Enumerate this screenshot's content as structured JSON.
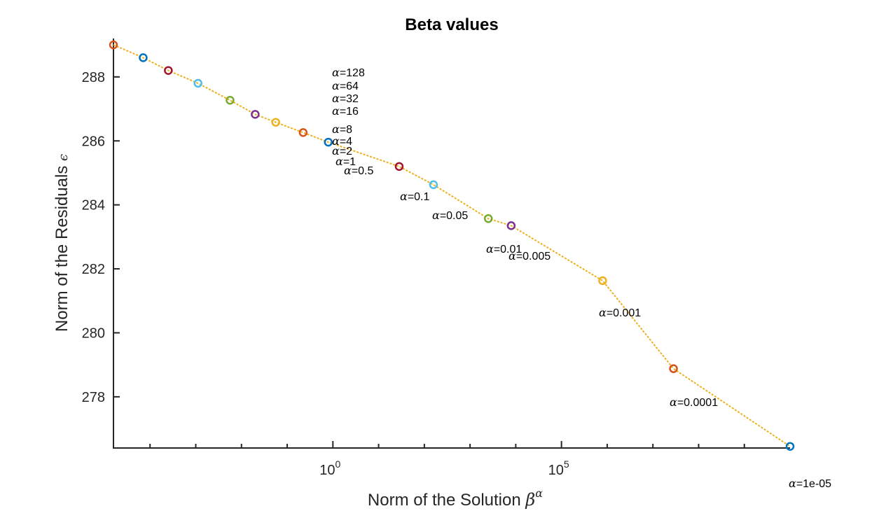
{
  "chart_data": {
    "type": "line",
    "title": "Beta values",
    "xlabel": "Norm of the Solution",
    "xlabel_symbol": "β",
    "xlabel_superscript": "α",
    "ylabel": "Norm of the Residuals",
    "ylabel_symbol": "ϵ",
    "x_scale": "log",
    "xlim_log10": [
      -4.8,
      10
    ],
    "ylim": [
      276.4,
      289.2
    ],
    "x_ticks": [
      {
        "base": "10",
        "exp": "0",
        "log10": 0
      },
      {
        "base": "10",
        "exp": "5",
        "log10": 5
      }
    ],
    "x_minor_ticks_log10": [
      -4,
      -3,
      -2,
      -1,
      1,
      2,
      3,
      4,
      6,
      7,
      8,
      9
    ],
    "y_ticks": [
      278,
      280,
      282,
      284,
      286,
      288
    ],
    "y_tick_labels": [
      "278",
      "280",
      "282",
      "284",
      "286",
      "288"
    ],
    "grid": false,
    "line_color": "#EDB120",
    "series": [
      {
        "label": "α=128",
        "annotation_text": "=128",
        "log10x": -4.8,
        "y": 289.0,
        "color": "#D95319"
      },
      {
        "label": "α=64",
        "annotation_text": "=64",
        "log10x": -4.15,
        "y": 288.6,
        "color": "#0072BD"
      },
      {
        "label": "α=32",
        "annotation_text": "=32",
        "log10x": -3.6,
        "y": 288.2,
        "color": "#A2142F"
      },
      {
        "label": "α=16",
        "annotation_text": "=16",
        "log10x": -2.95,
        "y": 287.8,
        "color": "#4DBEEE"
      },
      {
        "label": "α=8",
        "annotation_text": "=8",
        "log10x": -2.25,
        "y": 287.27,
        "color": "#77AC30"
      },
      {
        "label": "α=4",
        "annotation_text": "=4",
        "log10x": -1.7,
        "y": 286.83,
        "color": "#7E2F8E"
      },
      {
        "label": "α=2",
        "annotation_text": "=2",
        "log10x": -1.25,
        "y": 286.58,
        "color": "#EDB120"
      },
      {
        "label": "α=1",
        "annotation_text": "=1",
        "log10x": -0.65,
        "y": 286.26,
        "color": "#D95319"
      },
      {
        "label": "α=0.5",
        "annotation_text": "=0.5",
        "log10x": -0.1,
        "y": 285.96,
        "color": "#0072BD"
      },
      {
        "label": "α=0.1",
        "annotation_text": "=0.1",
        "log10x": 1.45,
        "y": 285.2,
        "color": "#A2142F"
      },
      {
        "label": "α=0.05",
        "annotation_text": "=0.05",
        "log10x": 2.2,
        "y": 284.63,
        "color": "#4DBEEE"
      },
      {
        "label": "α=0.01",
        "annotation_text": "=0.01",
        "log10x": 3.4,
        "y": 283.57,
        "color": "#77AC30"
      },
      {
        "label": "α=0.005",
        "annotation_text": "=0.005",
        "log10x": 3.9,
        "y": 283.35,
        "color": "#7E2F8E"
      },
      {
        "label": "α=0.001",
        "annotation_text": "=0.001",
        "log10x": 5.9,
        "y": 281.63,
        "color": "#EDB120"
      },
      {
        "label": "α=0.0001",
        "annotation_text": "=0.0001",
        "log10x": 7.45,
        "y": 278.88,
        "color": "#D95319"
      },
      {
        "label": "α=1e-05",
        "annotation_text": "=1e-05",
        "log10x": 10.0,
        "y": 276.45,
        "color": "#0072BD"
      }
    ]
  }
}
